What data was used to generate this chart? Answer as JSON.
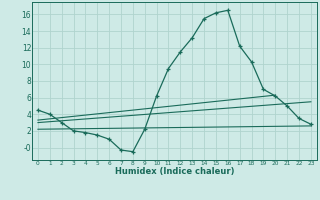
{
  "x": [
    0,
    1,
    2,
    3,
    4,
    5,
    6,
    7,
    8,
    9,
    10,
    11,
    12,
    13,
    14,
    15,
    16,
    17,
    18,
    19,
    20,
    21,
    22,
    23
  ],
  "y_main": [
    4.5,
    4.0,
    3.0,
    2.0,
    1.8,
    1.5,
    1.0,
    -0.3,
    -0.5,
    2.2,
    6.2,
    9.5,
    11.5,
    13.2,
    15.5,
    16.2,
    16.5,
    12.2,
    10.3,
    7.0,
    6.2,
    5.0,
    3.5,
    2.8
  ],
  "line1_x": [
    0,
    20
  ],
  "line1_y": [
    3.3,
    6.3
  ],
  "line2_x": [
    0,
    23
  ],
  "line2_y": [
    3.0,
    5.5
  ],
  "line3_x": [
    0,
    23
  ],
  "line3_y": [
    2.2,
    2.6
  ],
  "color": "#1a6b5a",
  "bg_color": "#ceeae6",
  "grid_color": "#b0d4ce",
  "xlabel": "Humidex (Indice chaleur)",
  "xlim": [
    -0.5,
    23.5
  ],
  "ylim": [
    -1.5,
    17.5
  ],
  "xticks": [
    0,
    1,
    2,
    3,
    4,
    5,
    6,
    7,
    8,
    9,
    10,
    11,
    12,
    13,
    14,
    15,
    16,
    17,
    18,
    19,
    20,
    21,
    22,
    23
  ],
  "yticks": [
    0,
    2,
    4,
    6,
    8,
    10,
    12,
    14,
    16
  ],
  "ytick_labels": [
    "-0",
    "2",
    "4",
    "6",
    "8",
    "10",
    "12",
    "14",
    "16"
  ]
}
